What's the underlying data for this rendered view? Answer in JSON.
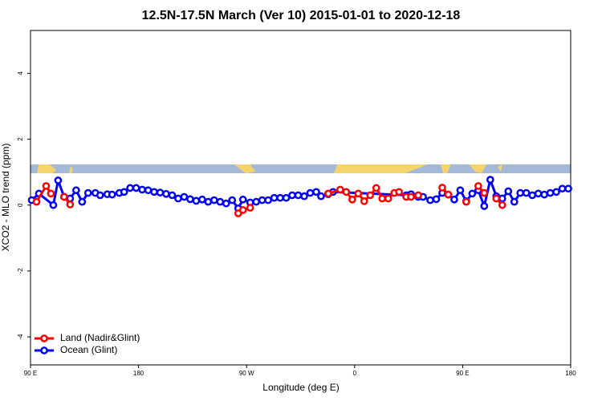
{
  "chart_data": {
    "type": "line",
    "title": "12.5N-17.5N March (Ver 10)   2015-01-01 to 2020-12-18",
    "x_label": "Longitude (deg E)",
    "y_label": "XCO2 - MLO trend (ppm)",
    "xlim": [
      90,
      540
    ],
    "ylim": [
      -4.85,
      5.3
    ],
    "xticks": [
      {
        "value": 90,
        "label": "90 E"
      },
      180,
      {
        "value": 270,
        "label": "90 W"
      },
      {
        "value": 360,
        "label": "0"
      },
      {
        "value": 450,
        "label": "90 E"
      },
      {
        "value": 540,
        "label": "180"
      }
    ],
    "yticks": [
      -4,
      -2,
      0,
      2,
      4
    ],
    "legend": "bottom-left",
    "series": [
      {
        "name": "Ocean (Glint)",
        "color": "#0000ff",
        "x": [
          91,
          97,
          109,
          113,
          118,
          123,
          128,
          133,
          138,
          144,
          148,
          154,
          158,
          164,
          168,
          173,
          178,
          183,
          188,
          193,
          198,
          203,
          208,
          213,
          218,
          223,
          228,
          233,
          238,
          243,
          248,
          253,
          258,
          263,
          267,
          273,
          278,
          283,
          288,
          293,
          298,
          303,
          308,
          313,
          318,
          323,
          328,
          332,
          338,
          342,
          403,
          407,
          413,
          417,
          423,
          428,
          433,
          438,
          443,
          448,
          453,
          458,
          463,
          468,
          473,
          478,
          483,
          488,
          493,
          498,
          503,
          508,
          513,
          518,
          523,
          528,
          533,
          538
        ],
        "values": [
          0.15,
          0.35,
          0.0,
          0.75,
          0.25,
          0.2,
          0.45,
          0.1,
          0.37,
          0.37,
          0.3,
          0.33,
          0.32,
          0.37,
          0.4,
          0.52,
          0.52,
          0.47,
          0.45,
          0.4,
          0.38,
          0.34,
          0.3,
          0.2,
          0.25,
          0.18,
          0.13,
          0.17,
          0.1,
          0.15,
          0.1,
          0.05,
          0.15,
          -0.1,
          0.17,
          0.08,
          0.1,
          0.15,
          0.15,
          0.22,
          0.22,
          0.22,
          0.3,
          0.3,
          0.27,
          0.37,
          0.4,
          0.27,
          0.33,
          0.4,
          0.3,
          0.33,
          0.25,
          0.25,
          0.15,
          0.18,
          0.37,
          0.32,
          0.17,
          0.45,
          0.12,
          0.35,
          0.45,
          -0.03,
          0.77,
          0.27,
          0.2,
          0.42,
          0.1,
          0.37,
          0.37,
          0.3,
          0.35,
          0.32,
          0.37,
          0.4,
          0.5,
          0.5
        ]
      },
      {
        "name": "Land (Nadir&Glint)",
        "color": "#ff0000",
        "x": [
          95,
          103,
          107,
          113,
          118,
          123,
          193,
          263,
          267,
          273,
          303,
          338,
          348,
          353,
          358,
          363,
          368,
          373,
          378,
          383,
          388,
          393,
          397,
          403,
          407,
          413,
          423,
          433,
          438,
          443,
          453,
          458,
          463,
          468,
          473,
          478,
          483
        ],
        "values": [
          0.1,
          0.58,
          0.35,
          null,
          0.25,
          0.02,
          null,
          -0.25,
          -0.15,
          -0.08,
          null,
          0.35,
          0.47,
          0.4,
          0.17,
          0.35,
          0.12,
          0.3,
          0.52,
          0.2,
          0.2,
          0.37,
          0.4,
          0.25,
          0.25,
          0.3,
          null,
          0.53,
          0.32,
          null,
          0.1,
          null,
          0.58,
          0.37,
          null,
          0.2,
          0.0
        ]
      }
    ]
  }
}
